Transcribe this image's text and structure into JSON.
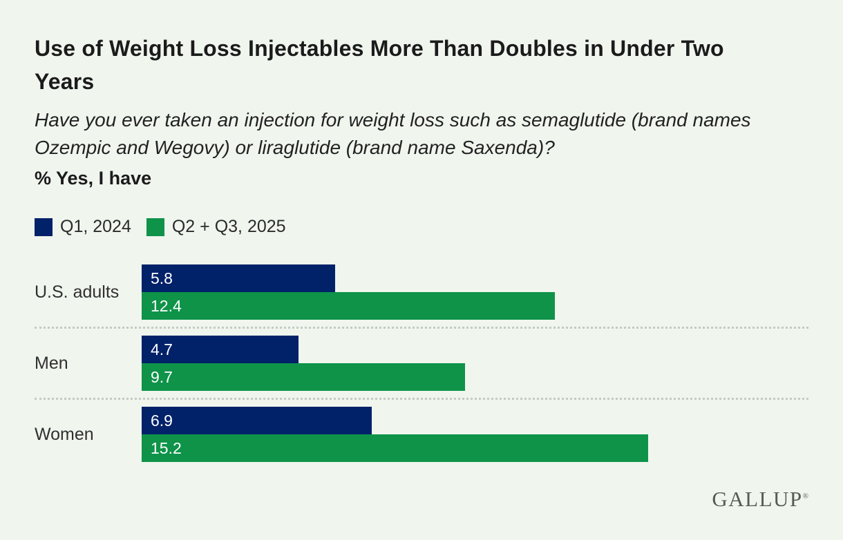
{
  "header": {
    "title": "Use of Weight Loss Injectables More Than Doubles in Under Two Years",
    "subtitle": "Have you ever taken an injection for weight loss such as semaglutide (brand names Ozempic and Wegovy) or liraglutide (brand name Saxenda)?",
    "metric_label": "% Yes, I have"
  },
  "legend": [
    {
      "label": "Q1, 2024",
      "color": "#012169"
    },
    {
      "label": "Q2 + Q3, 2025",
      "color": "#0E9349"
    }
  ],
  "chart_data": {
    "type": "bar",
    "orientation": "horizontal",
    "title": "Use of Weight Loss Injectables More Than Doubles in Under Two Years",
    "subtitle": "Have you ever taken an injection for weight loss such as semaglutide (brand names Ozempic and Wegovy) or liraglutide (brand name Saxenda)? % Yes, I have",
    "categories": [
      "U.S. adults",
      "Men",
      "Women"
    ],
    "series": [
      {
        "name": "Q1, 2024",
        "color": "#012169",
        "values": [
          5.8,
          4.7,
          6.9
        ]
      },
      {
        "name": "Q2 + Q3, 2025",
        "color": "#0E9349",
        "values": [
          12.4,
          9.7,
          15.2
        ]
      }
    ],
    "xlim": [
      0,
      20
    ],
    "grid": false,
    "legend_position": "top-left",
    "value_labels": "inside-start"
  },
  "footer": {
    "logo_text": "GALLUP",
    "logo_mark": "®"
  },
  "colors": {
    "background": "#F0F5EE",
    "navy": "#012169",
    "green": "#0E9349",
    "separator": "#C3CCC2",
    "logo": "#565C52"
  }
}
